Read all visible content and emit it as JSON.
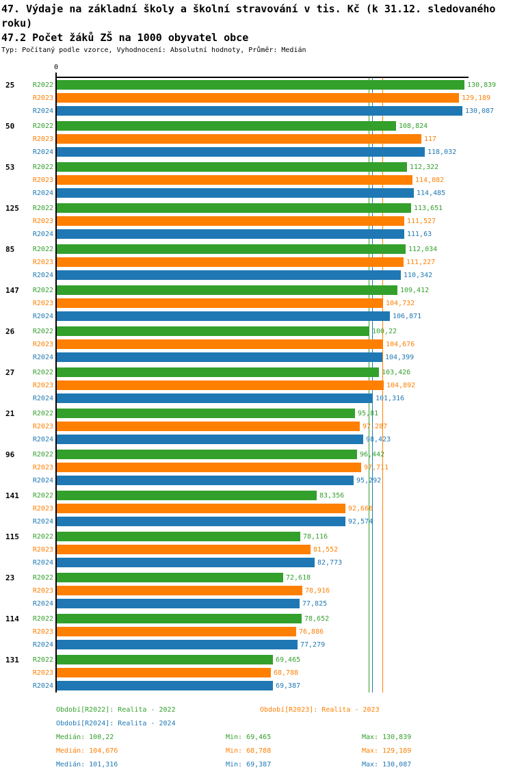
{
  "header": {
    "title": "47. Výdaje na základní školy a školní stravování v tis. Kč (k 31.12. sledovaného roku)",
    "subtitle": "47.2 Počet žáků ZŠ na 1000 obyvatel obce",
    "meta": "Typ: Počítaný podle vzorce, Vyhodnocení: Absolutní hodnoty, Průměr: Medián"
  },
  "axis": {
    "zero_label": "0"
  },
  "colors": {
    "r2022": "#33a02c",
    "r2023": "#ff7f00",
    "r2024": "#1f78b4",
    "axis": "#000000"
  },
  "chart_data": {
    "type": "bar",
    "orientation": "horizontal",
    "title": "47.2 Počet žáků ZŠ na 1000 obyvatel obce",
    "xlabel": "",
    "ylabel": "",
    "xlim": [
      0,
      131
    ],
    "grid": false,
    "legend_position": "bottom",
    "categories": [
      "25",
      "50",
      "53",
      "125",
      "85",
      "147",
      "26",
      "27",
      "21",
      "96",
      "141",
      "115",
      "23",
      "114",
      "131"
    ],
    "series": [
      {
        "name": "R2022",
        "color_key": "r2022",
        "values": [
          130.839,
          108.824,
          112.322,
          113.651,
          112.034,
          109.412,
          100.22,
          103.426,
          95.81,
          96.442,
          83.356,
          78.116,
          72.618,
          78.652,
          69.465
        ],
        "labels": [
          "130,839",
          "108,824",
          "112,322",
          "113,651",
          "112,034",
          "109,412",
          "100,22",
          "103,426",
          "95,81",
          "96,442",
          "83,356",
          "78,116",
          "72,618",
          "78,652",
          "69,465"
        ]
      },
      {
        "name": "R2023",
        "color_key": "r2023",
        "values": [
          129.189,
          117,
          114.082,
          111.527,
          111.227,
          104.732,
          104.676,
          104.892,
          97.287,
          97.711,
          92.666,
          81.552,
          78.916,
          76.886,
          68.788
        ],
        "labels": [
          "129,189",
          "117",
          "114,082",
          "111,527",
          "111,227",
          "104,732",
          "104,676",
          "104,892",
          "97,287",
          "97,711",
          "92,666",
          "81,552",
          "78,916",
          "76,886",
          "68,788"
        ]
      },
      {
        "name": "R2024",
        "color_key": "r2024",
        "values": [
          130.087,
          118.032,
          114.485,
          111.63,
          110.342,
          106.871,
          104.399,
          101.316,
          98.423,
          95.292,
          92.574,
          82.773,
          77.825,
          77.279,
          69.387
        ],
        "labels": [
          "130,087",
          "118,032",
          "114,485",
          "111,63",
          "110,342",
          "106,871",
          "104,399",
          "101,316",
          "98,423",
          "95,292",
          "92,574",
          "82,773",
          "77,825",
          "77,279",
          "69,387"
        ]
      }
    ],
    "median_lines": [
      {
        "series": "r2022",
        "value": 100.22
      },
      {
        "series": "r2023",
        "value": 104.676
      },
      {
        "series": "r2024",
        "value": 101.316
      }
    ]
  },
  "legend": {
    "items": [
      {
        "text": "Období[R2022]: Realita - 2022",
        "series": "r2022"
      },
      {
        "text": "Období[R2023]: Realita - 2023",
        "series": "r2023"
      },
      {
        "text": "Období[R2024]: Realita - 2024",
        "series": "r2024"
      }
    ]
  },
  "stats": {
    "rows": [
      {
        "series": "r2022",
        "median": "Medián: 100,22",
        "min": "Min: 69,465",
        "max": "Max: 130,839"
      },
      {
        "series": "r2023",
        "median": "Medián: 104,676",
        "min": "Min: 68,788",
        "max": "Max: 129,189"
      },
      {
        "series": "r2024",
        "median": "Medián: 101,316",
        "min": "Min: 69,387",
        "max": "Max: 130,087"
      }
    ]
  }
}
